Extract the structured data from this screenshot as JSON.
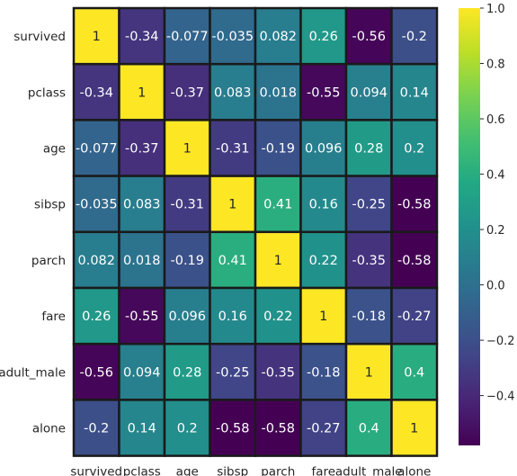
{
  "chart_data": {
    "type": "heatmap",
    "title": "",
    "xlabel": "",
    "ylabel": "",
    "rows": [
      "survived",
      "pclass",
      "age",
      "sibsp",
      "parch",
      "fare",
      "adult_male",
      "alone"
    ],
    "columns": [
      "survived",
      "pclass",
      "age",
      "sibsp",
      "parch",
      "fare",
      "adult_male",
      "alone"
    ],
    "values": [
      [
        1,
        -0.34,
        -0.077,
        -0.035,
        0.082,
        0.26,
        -0.56,
        -0.2
      ],
      [
        -0.34,
        1,
        -0.37,
        0.083,
        0.018,
        -0.55,
        0.094,
        0.14
      ],
      [
        -0.077,
        -0.37,
        1,
        -0.31,
        -0.19,
        0.096,
        0.28,
        0.2
      ],
      [
        -0.035,
        0.083,
        -0.31,
        1,
        0.41,
        0.16,
        -0.25,
        -0.58
      ],
      [
        0.082,
        0.018,
        -0.19,
        0.41,
        1,
        0.22,
        -0.35,
        -0.58
      ],
      [
        0.26,
        -0.55,
        0.096,
        0.16,
        0.22,
        1,
        -0.18,
        -0.27
      ],
      [
        -0.56,
        0.094,
        0.28,
        -0.25,
        -0.35,
        -0.18,
        1,
        0.4
      ],
      [
        -0.2,
        0.14,
        0.2,
        -0.58,
        -0.58,
        -0.27,
        0.4,
        1
      ]
    ],
    "annotation_labels": [
      [
        "1",
        "-0.34",
        "-0.077",
        "-0.035",
        "0.082",
        "0.26",
        "-0.56",
        "-0.2"
      ],
      [
        "-0.34",
        "1",
        "-0.37",
        "0.083",
        "0.018",
        "-0.55",
        "0.094",
        "0.14"
      ],
      [
        "-0.077",
        "-0.37",
        "1",
        "-0.31",
        "-0.19",
        "0.096",
        "0.28",
        "0.2"
      ],
      [
        "-0.035",
        "0.083",
        "-0.31",
        "1",
        "0.41",
        "0.16",
        "-0.25",
        "-0.58"
      ],
      [
        "0.082",
        "0.018",
        "-0.19",
        "0.41",
        "1",
        "0.22",
        "-0.35",
        "-0.58"
      ],
      [
        "0.26",
        "-0.55",
        "0.096",
        "0.16",
        "0.22",
        "1",
        "-0.18",
        "-0.27"
      ],
      [
        "-0.56",
        "0.094",
        "0.28",
        "-0.25",
        "-0.35",
        "-0.18",
        "1",
        "0.4"
      ],
      [
        "-0.2",
        "0.14",
        "0.2",
        "-0.58",
        "-0.58",
        "-0.27",
        "0.4",
        "1"
      ]
    ],
    "colormap": "viridis",
    "colorbar": {
      "vmin": -0.58,
      "vmax": 1.0,
      "ticks": [
        -0.4,
        -0.2,
        0.0,
        0.2,
        0.4,
        0.6,
        0.8,
        1.0
      ],
      "tick_labels": [
        "−0.4",
        "−0.2",
        "0.0",
        "0.2",
        "0.4",
        "0.6",
        "0.8",
        "1.0"
      ]
    },
    "grid": true,
    "legend": "colorbar-right",
    "cell_border_color": "#1a1a1a"
  }
}
